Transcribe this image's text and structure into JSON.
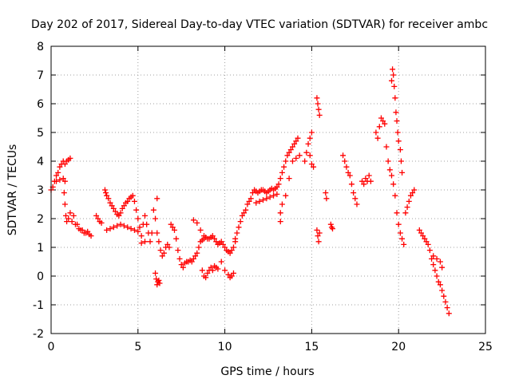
{
  "chart_data": {
    "type": "scatter",
    "title": "Day 202 of 2017, Sidereal Day-to-day VTEC variation (SDTVAR) for receiver ambc",
    "xlabel": "GPS time / hours",
    "ylabel": "SDTVAR / TECUs",
    "xlim": [
      0,
      25
    ],
    "ylim": [
      -2,
      8
    ],
    "x_ticks": [
      "0",
      "5",
      "10",
      "15",
      "20",
      "25"
    ],
    "y_ticks": [
      "-2",
      "-1",
      "0",
      "1",
      "2",
      "3",
      "4",
      "5",
      "6",
      "7",
      "8"
    ],
    "grid": true,
    "marker": "plus",
    "marker_color": "#ff0000",
    "series": [
      {
        "name": "SDTVAR",
        "points": [
          [
            0.0,
            3.0
          ],
          [
            0.1,
            3.1
          ],
          [
            0.2,
            3.3
          ],
          [
            0.3,
            3.5
          ],
          [
            0.4,
            3.6
          ],
          [
            0.5,
            3.8
          ],
          [
            0.6,
            3.9
          ],
          [
            0.7,
            4.0
          ],
          [
            0.8,
            3.9
          ],
          [
            0.9,
            4.0
          ],
          [
            1.0,
            4.05
          ],
          [
            1.1,
            4.1
          ],
          [
            0.3,
            3.3
          ],
          [
            0.5,
            3.35
          ],
          [
            0.7,
            3.4
          ],
          [
            0.8,
            3.3
          ],
          [
            0.75,
            2.9
          ],
          [
            0.8,
            2.5
          ],
          [
            0.85,
            2.1
          ],
          [
            0.9,
            1.9
          ],
          [
            1.0,
            2.0
          ],
          [
            1.1,
            2.2
          ],
          [
            1.2,
            1.9
          ],
          [
            1.3,
            2.1
          ],
          [
            1.4,
            1.8
          ],
          [
            1.5,
            1.8
          ],
          [
            1.6,
            1.65
          ],
          [
            1.7,
            1.6
          ],
          [
            1.8,
            1.6
          ],
          [
            1.9,
            1.5
          ],
          [
            2.0,
            1.5
          ],
          [
            2.1,
            1.55
          ],
          [
            2.2,
            1.45
          ],
          [
            2.3,
            1.4
          ],
          [
            2.6,
            2.1
          ],
          [
            2.7,
            2.0
          ],
          [
            2.8,
            1.9
          ],
          [
            2.9,
            1.85
          ],
          [
            3.1,
            3.0
          ],
          [
            3.15,
            2.9
          ],
          [
            3.2,
            2.8
          ],
          [
            3.3,
            2.7
          ],
          [
            3.4,
            2.55
          ],
          [
            3.5,
            2.45
          ],
          [
            3.6,
            2.35
          ],
          [
            3.7,
            2.25
          ],
          [
            3.8,
            2.15
          ],
          [
            3.9,
            2.1
          ],
          [
            4.0,
            2.2
          ],
          [
            4.1,
            2.35
          ],
          [
            4.2,
            2.45
          ],
          [
            4.3,
            2.55
          ],
          [
            4.4,
            2.6
          ],
          [
            4.5,
            2.7
          ],
          [
            4.6,
            2.75
          ],
          [
            4.7,
            2.8
          ],
          [
            3.2,
            1.6
          ],
          [
            3.4,
            1.65
          ],
          [
            3.6,
            1.7
          ],
          [
            3.8,
            1.75
          ],
          [
            4.0,
            1.8
          ],
          [
            4.2,
            1.75
          ],
          [
            4.4,
            1.7
          ],
          [
            4.6,
            1.65
          ],
          [
            4.8,
            1.6
          ],
          [
            5.0,
            1.55
          ],
          [
            4.8,
            2.6
          ],
          [
            4.9,
            2.3
          ],
          [
            5.0,
            2.0
          ],
          [
            5.1,
            1.7
          ],
          [
            5.2,
            1.4
          ],
          [
            5.3,
            1.8
          ],
          [
            5.4,
            2.1
          ],
          [
            5.5,
            1.8
          ],
          [
            5.6,
            1.5
          ],
          [
            5.7,
            1.2
          ],
          [
            5.8,
            1.5
          ],
          [
            5.2,
            1.15
          ],
          [
            5.4,
            1.2
          ],
          [
            6.0,
            0.1
          ],
          [
            6.05,
            -0.1
          ],
          [
            6.1,
            -0.3
          ],
          [
            6.15,
            -0.2
          ],
          [
            6.2,
            -0.15
          ],
          [
            6.25,
            -0.25
          ],
          [
            5.9,
            2.3
          ],
          [
            6.0,
            2.0
          ],
          [
            6.1,
            1.5
          ],
          [
            6.2,
            1.2
          ],
          [
            6.3,
            0.9
          ],
          [
            6.4,
            0.7
          ],
          [
            6.5,
            0.8
          ],
          [
            6.6,
            1.0
          ],
          [
            6.7,
            1.1
          ],
          [
            6.8,
            1.0
          ],
          [
            6.1,
            2.7
          ],
          [
            6.9,
            1.8
          ],
          [
            7.0,
            1.7
          ],
          [
            7.1,
            1.6
          ],
          [
            7.2,
            1.3
          ],
          [
            7.3,
            0.9
          ],
          [
            7.4,
            0.6
          ],
          [
            7.5,
            0.4
          ],
          [
            7.6,
            0.3
          ],
          [
            7.7,
            0.45
          ],
          [
            7.8,
            0.5
          ],
          [
            7.9,
            0.5
          ],
          [
            8.0,
            0.55
          ],
          [
            8.1,
            0.5
          ],
          [
            8.2,
            0.6
          ],
          [
            8.3,
            0.7
          ],
          [
            8.4,
            0.8
          ],
          [
            8.5,
            1.0
          ],
          [
            8.6,
            1.2
          ],
          [
            8.7,
            1.25
          ],
          [
            8.8,
            1.3
          ],
          [
            8.9,
            1.35
          ],
          [
            9.0,
            1.3
          ],
          [
            9.1,
            1.3
          ],
          [
            9.2,
            1.35
          ],
          [
            9.3,
            1.4
          ],
          [
            9.4,
            1.3
          ],
          [
            9.5,
            1.2
          ],
          [
            9.6,
            1.1
          ],
          [
            9.7,
            1.15
          ],
          [
            9.8,
            1.2
          ],
          [
            9.9,
            1.1
          ],
          [
            10.0,
            1.0
          ],
          [
            10.1,
            0.9
          ],
          [
            10.2,
            0.85
          ],
          [
            10.3,
            0.8
          ],
          [
            10.4,
            0.9
          ],
          [
            10.5,
            1.0
          ],
          [
            10.6,
            1.2
          ],
          [
            8.2,
            1.95
          ],
          [
            8.4,
            1.85
          ],
          [
            8.6,
            1.6
          ],
          [
            8.8,
            1.4
          ],
          [
            8.7,
            0.2
          ],
          [
            8.8,
            0.0
          ],
          [
            8.9,
            -0.05
          ],
          [
            9.0,
            0.1
          ],
          [
            9.1,
            0.2
          ],
          [
            9.2,
            0.3
          ],
          [
            9.3,
            0.2
          ],
          [
            9.4,
            0.35
          ],
          [
            9.5,
            0.3
          ],
          [
            9.6,
            0.25
          ],
          [
            9.8,
            0.5
          ],
          [
            10.0,
            0.2
          ],
          [
            10.2,
            0.05
          ],
          [
            10.3,
            -0.05
          ],
          [
            10.4,
            0.0
          ],
          [
            10.5,
            0.1
          ],
          [
            10.6,
            1.3
          ],
          [
            10.7,
            1.5
          ],
          [
            10.8,
            1.7
          ],
          [
            10.9,
            1.9
          ],
          [
            11.0,
            2.1
          ],
          [
            11.1,
            2.2
          ],
          [
            11.2,
            2.3
          ],
          [
            11.3,
            2.5
          ],
          [
            11.4,
            2.6
          ],
          [
            11.5,
            2.7
          ],
          [
            11.6,
            2.9
          ],
          [
            11.7,
            3.0
          ],
          [
            11.8,
            2.95
          ],
          [
            11.9,
            2.9
          ],
          [
            12.0,
            2.95
          ],
          [
            12.1,
            3.0
          ],
          [
            12.2,
            3.0
          ],
          [
            12.3,
            2.95
          ],
          [
            12.4,
            2.9
          ],
          [
            12.5,
            2.95
          ],
          [
            12.6,
            3.0
          ],
          [
            12.7,
            3.05
          ],
          [
            12.8,
            3.0
          ],
          [
            12.9,
            3.05
          ],
          [
            13.0,
            3.1
          ],
          [
            11.8,
            2.55
          ],
          [
            12.0,
            2.6
          ],
          [
            12.2,
            2.65
          ],
          [
            12.4,
            2.7
          ],
          [
            12.6,
            2.75
          ],
          [
            12.8,
            2.8
          ],
          [
            13.0,
            2.85
          ],
          [
            13.1,
            3.2
          ],
          [
            13.2,
            3.4
          ],
          [
            13.3,
            3.6
          ],
          [
            13.4,
            3.8
          ],
          [
            13.5,
            4.0
          ],
          [
            13.6,
            4.2
          ],
          [
            13.7,
            4.3
          ],
          [
            13.8,
            4.4
          ],
          [
            13.9,
            4.5
          ],
          [
            14.0,
            4.6
          ],
          [
            14.1,
            4.7
          ],
          [
            14.2,
            4.8
          ],
          [
            13.3,
            2.5
          ],
          [
            13.2,
            2.2
          ],
          [
            13.2,
            1.9
          ],
          [
            13.5,
            2.8
          ],
          [
            13.7,
            3.4
          ],
          [
            13.9,
            4.0
          ],
          [
            14.1,
            4.1
          ],
          [
            14.3,
            4.2
          ],
          [
            14.6,
            4.0
          ],
          [
            14.7,
            4.3
          ],
          [
            14.8,
            4.6
          ],
          [
            14.9,
            4.8
          ],
          [
            15.0,
            5.0
          ],
          [
            14.9,
            4.2
          ],
          [
            15.0,
            3.9
          ],
          [
            15.1,
            3.8
          ],
          [
            15.3,
            6.2
          ],
          [
            15.35,
            6.0
          ],
          [
            15.4,
            5.8
          ],
          [
            15.45,
            5.6
          ],
          [
            15.3,
            1.6
          ],
          [
            15.35,
            1.4
          ],
          [
            15.4,
            1.2
          ],
          [
            15.45,
            1.5
          ],
          [
            15.8,
            2.9
          ],
          [
            15.85,
            2.7
          ],
          [
            16.1,
            1.8
          ],
          [
            16.15,
            1.7
          ],
          [
            16.2,
            1.65
          ],
          [
            16.8,
            4.2
          ],
          [
            16.9,
            4.0
          ],
          [
            17.0,
            3.8
          ],
          [
            17.1,
            3.6
          ],
          [
            17.2,
            3.5
          ],
          [
            17.3,
            3.2
          ],
          [
            17.4,
            2.9
          ],
          [
            17.5,
            2.7
          ],
          [
            17.6,
            2.5
          ],
          [
            17.9,
            3.3
          ],
          [
            18.0,
            3.2
          ],
          [
            18.1,
            3.4
          ],
          [
            18.2,
            3.3
          ],
          [
            18.3,
            3.5
          ],
          [
            18.4,
            3.3
          ],
          [
            18.7,
            5.0
          ],
          [
            18.8,
            4.8
          ],
          [
            18.9,
            5.2
          ],
          [
            19.0,
            5.5
          ],
          [
            19.1,
            5.4
          ],
          [
            19.2,
            5.3
          ],
          [
            19.3,
            4.5
          ],
          [
            19.4,
            4.0
          ],
          [
            19.5,
            3.7
          ],
          [
            19.6,
            3.5
          ],
          [
            19.7,
            3.2
          ],
          [
            19.8,
            2.8
          ],
          [
            19.9,
            2.2
          ],
          [
            20.0,
            1.8
          ],
          [
            20.1,
            1.5
          ],
          [
            20.2,
            1.3
          ],
          [
            20.3,
            1.1
          ],
          [
            19.6,
            6.8
          ],
          [
            19.65,
            7.2
          ],
          [
            19.7,
            7.0
          ],
          [
            19.75,
            6.6
          ],
          [
            19.8,
            6.2
          ],
          [
            19.85,
            5.7
          ],
          [
            19.9,
            5.4
          ],
          [
            19.95,
            5.0
          ],
          [
            20.0,
            4.7
          ],
          [
            20.1,
            4.4
          ],
          [
            20.15,
            4.0
          ],
          [
            20.2,
            3.6
          ],
          [
            20.4,
            2.2
          ],
          [
            20.5,
            2.4
          ],
          [
            20.6,
            2.6
          ],
          [
            20.7,
            2.8
          ],
          [
            20.8,
            2.9
          ],
          [
            20.9,
            3.0
          ],
          [
            21.2,
            1.6
          ],
          [
            21.3,
            1.5
          ],
          [
            21.4,
            1.4
          ],
          [
            21.5,
            1.3
          ],
          [
            21.6,
            1.2
          ],
          [
            21.7,
            1.1
          ],
          [
            21.8,
            0.9
          ],
          [
            21.9,
            0.6
          ],
          [
            22.0,
            0.4
          ],
          [
            22.1,
            0.2
          ],
          [
            22.2,
            0.0
          ],
          [
            22.3,
            -0.2
          ],
          [
            22.4,
            -0.3
          ],
          [
            22.5,
            -0.5
          ],
          [
            22.6,
            -0.7
          ],
          [
            22.7,
            -0.9
          ],
          [
            22.8,
            -1.1
          ],
          [
            22.9,
            -1.3
          ],
          [
            22.0,
            0.7
          ],
          [
            22.2,
            0.6
          ],
          [
            22.4,
            0.5
          ],
          [
            22.5,
            0.3
          ]
        ]
      }
    ]
  }
}
